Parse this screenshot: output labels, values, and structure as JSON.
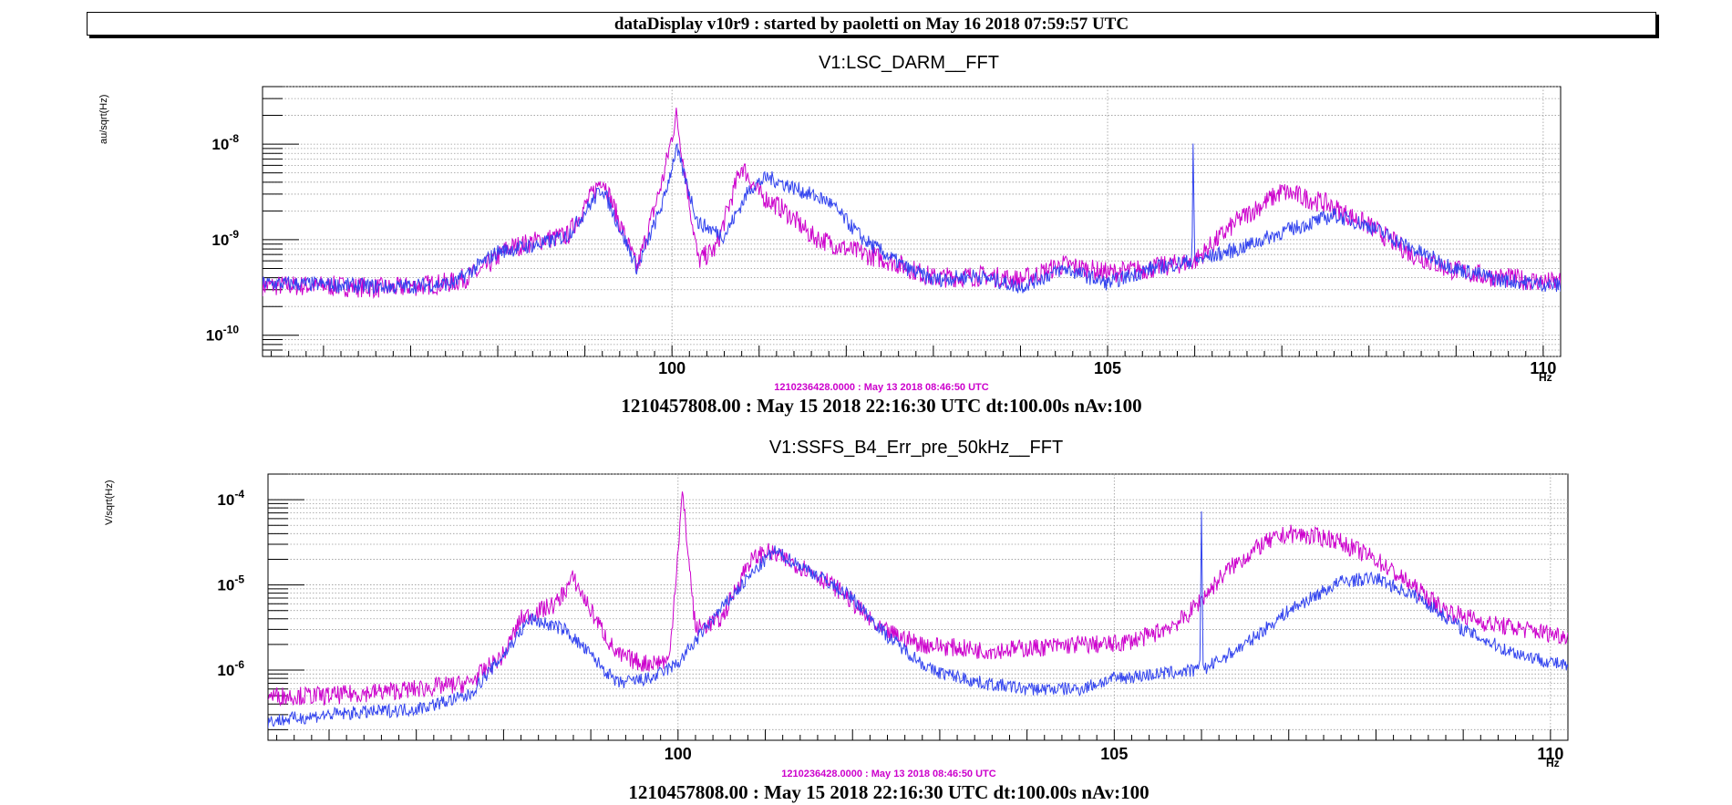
{
  "header": {
    "title": "dataDisplay v10r9 : started by paoletti on May 16 2018 07:59:57 UTC"
  },
  "colors": {
    "reference": "#cc00cc",
    "current": "#3344ee"
  },
  "panels": [
    {
      "title": "V1:LSC_DARM__FFT",
      "ylabel": "au/sqrt(Hz)",
      "ref_time": "1210236428.0000 : May 13 2018 08:46:50 UTC",
      "cur_time": "1210457808.00 : May 15 2018 22:16:30 UTC dt:100.00s nAv:100",
      "x_unit_fragment": "Hz"
    },
    {
      "title": "V1:SSFS_B4_Err_pre_50kHz__FFT",
      "ylabel": "V/sqrt(Hz)",
      "ref_time": "1210236428.0000 : May 13 2018 08:46:50 UTC",
      "cur_time": "1210457808.00 : May 15 2018 22:16:30 UTC dt:100.00s nAv:100",
      "x_unit_fragment": "Hz"
    }
  ],
  "chart_data": [
    {
      "type": "line",
      "title": "V1:LSC_DARM__FFT",
      "xlabel": "",
      "ylabel": "au/sqrt(Hz)",
      "xlim": [
        95.3,
        110.2
      ],
      "ylim": [
        6e-11,
        4e-08
      ],
      "yscale": "log",
      "grid": true,
      "xticks": [
        100,
        105,
        110
      ],
      "yticks": [
        {
          "exp": -10,
          "value": 1e-10
        },
        {
          "exp": -9,
          "value": 1e-09
        },
        {
          "exp": -8,
          "value": 1e-08
        }
      ],
      "series": [
        {
          "role": "reference",
          "points": [
            [
              95.3,
              3.3e-10
            ],
            [
              96,
              3.3e-10
            ],
            [
              96.8,
              3.1e-10
            ],
            [
              97.5,
              3.6e-10
            ],
            [
              97.8,
              4.6e-10
            ],
            [
              98.1,
              8e-10
            ],
            [
              98.5,
              1e-09
            ],
            [
              98.8,
              1.1e-09
            ],
            [
              99.2,
              4.5e-09
            ],
            [
              99.6,
              5e-10
            ],
            [
              99.9,
              4.5e-09
            ],
            [
              100.05,
              2e-08
            ],
            [
              100.3,
              6e-10
            ],
            [
              100.5,
              8e-10
            ],
            [
              100.8,
              6e-09
            ],
            [
              101,
              3e-09
            ],
            [
              101.3,
              2e-09
            ],
            [
              101.6,
              1.1e-09
            ],
            [
              102,
              8e-10
            ],
            [
              102.5,
              6e-10
            ],
            [
              103,
              4e-10
            ],
            [
              103.6,
              4.2e-10
            ],
            [
              104,
              3.8e-10
            ],
            [
              104.5,
              5.5e-10
            ],
            [
              105,
              4.5e-10
            ],
            [
              105.5,
              5e-10
            ],
            [
              106,
              6e-10
            ],
            [
              106.5,
              1.6e-09
            ],
            [
              107,
              3.2e-09
            ],
            [
              107.5,
              2.4e-09
            ],
            [
              108,
              1.4e-09
            ],
            [
              108.5,
              7e-10
            ],
            [
              108.9,
              5e-10
            ],
            [
              109.3,
              4.2e-10
            ],
            [
              110.2,
              3.5e-10
            ]
          ]
        },
        {
          "role": "current",
          "points": [
            [
              95.3,
              3.5e-10
            ],
            [
              96,
              3.4e-10
            ],
            [
              96.8,
              3.2e-10
            ],
            [
              97.5,
              3.5e-10
            ],
            [
              98,
              7.5e-10
            ],
            [
              98.5,
              9e-10
            ],
            [
              98.8,
              1.1e-09
            ],
            [
              99.2,
              3.5e-09
            ],
            [
              99.6,
              5e-10
            ],
            [
              99.9,
              2.5e-09
            ],
            [
              100.05,
              9e-09
            ],
            [
              100.3,
              1.5e-09
            ],
            [
              100.6,
              1.1e-09
            ],
            [
              100.9,
              3.5e-09
            ],
            [
              101.1,
              4.5e-09
            ],
            [
              101.5,
              3.2e-09
            ],
            [
              101.8,
              2.5e-09
            ],
            [
              102.2,
              1e-09
            ],
            [
              102.7,
              5e-10
            ],
            [
              103,
              3.8e-10
            ],
            [
              103.5,
              4.2e-10
            ],
            [
              104,
              3.2e-10
            ],
            [
              104.5,
              5e-10
            ],
            [
              105,
              3.5e-10
            ],
            [
              105.5,
              5e-10
            ],
            [
              105.97,
              6e-10
            ],
            [
              105.98,
              1.3e-08
            ],
            [
              106,
              6e-10
            ],
            [
              106.5,
              8e-10
            ],
            [
              107,
              1.2e-09
            ],
            [
              107.6,
              1.8e-09
            ],
            [
              108,
              1.4e-09
            ],
            [
              108.5,
              8e-10
            ],
            [
              109,
              5e-10
            ],
            [
              109.5,
              3.8e-10
            ],
            [
              110.2,
              3.3e-10
            ]
          ]
        }
      ]
    },
    {
      "type": "line",
      "title": "V1:SSFS_B4_Err_pre_50kHz__FFT",
      "xlabel": "",
      "ylabel": "V/sqrt(Hz)",
      "xlim": [
        95.3,
        110.2
      ],
      "ylim": [
        1.5e-07,
        0.0002
      ],
      "yscale": "log",
      "grid": true,
      "xticks": [
        100,
        105,
        110
      ],
      "yticks": [
        {
          "exp": -6,
          "value": 1e-06
        },
        {
          "exp": -5,
          "value": 1e-05
        },
        {
          "exp": -4,
          "value": 0.0001
        }
      ],
      "series": [
        {
          "role": "reference",
          "points": [
            [
              95.3,
              5e-07
            ],
            [
              96,
              5e-07
            ],
            [
              97,
              6e-07
            ],
            [
              97.6,
              7e-07
            ],
            [
              98,
              1.5e-06
            ],
            [
              98.2,
              4e-06
            ],
            [
              98.6,
              6e-06
            ],
            [
              98.8,
              1.2e-05
            ],
            [
              99,
              5e-06
            ],
            [
              99.3,
              1.5e-06
            ],
            [
              99.6,
              1.2e-06
            ],
            [
              99.9,
              1.3e-06
            ],
            [
              100.05,
              0.00012
            ],
            [
              100.2,
              3e-06
            ],
            [
              100.5,
              4e-06
            ],
            [
              100.8,
              1.8e-05
            ],
            [
              101,
              2.5e-05
            ],
            [
              101.5,
              1.5e-05
            ],
            [
              101.9,
              8e-06
            ],
            [
              102.3,
              3e-06
            ],
            [
              102.8,
              2e-06
            ],
            [
              103.5,
              1.7e-06
            ],
            [
              104,
              1.8e-06
            ],
            [
              104.6,
              2e-06
            ],
            [
              105,
              2e-06
            ],
            [
              105.4,
              2.5e-06
            ],
            [
              105.8,
              4e-06
            ],
            [
              106.3,
              1.5e-05
            ],
            [
              106.7,
              3e-05
            ],
            [
              107,
              4e-05
            ],
            [
              107.5,
              3.5e-05
            ],
            [
              108,
              2e-05
            ],
            [
              108.4,
              1e-05
            ],
            [
              108.8,
              5e-06
            ],
            [
              109.3,
              3.5e-06
            ],
            [
              110.2,
              2.5e-06
            ]
          ]
        },
        {
          "role": "current",
          "points": [
            [
              95.3,
              2.5e-07
            ],
            [
              96,
              3e-07
            ],
            [
              97,
              3.5e-07
            ],
            [
              97.6,
              5e-07
            ],
            [
              98,
              1.5e-06
            ],
            [
              98.3,
              4e-06
            ],
            [
              98.7,
              3e-06
            ],
            [
              99,
              1.5e-06
            ],
            [
              99.3,
              7e-07
            ],
            [
              99.7,
              8e-07
            ],
            [
              100,
              1.2e-06
            ],
            [
              100.4,
              4e-06
            ],
            [
              100.8,
              1.2e-05
            ],
            [
              101.1,
              2.5e-05
            ],
            [
              101.6,
              1.3e-05
            ],
            [
              102,
              7e-06
            ],
            [
              102.4,
              2.5e-06
            ],
            [
              102.9,
              1e-06
            ],
            [
              103.5,
              7e-07
            ],
            [
              104,
              6e-07
            ],
            [
              104.6,
              6e-07
            ],
            [
              105,
              8e-07
            ],
            [
              105.5,
              9e-07
            ],
            [
              105.98,
              1e-06
            ],
            [
              106,
              8e-05
            ],
            [
              106.02,
              1e-06
            ],
            [
              106.5,
              2e-06
            ],
            [
              107,
              5e-06
            ],
            [
              107.6,
              1.1e-05
            ],
            [
              108,
              1.2e-05
            ],
            [
              108.5,
              7e-06
            ],
            [
              109,
              3e-06
            ],
            [
              109.5,
              1.7e-06
            ],
            [
              110.2,
              1.1e-06
            ]
          ]
        }
      ]
    }
  ]
}
